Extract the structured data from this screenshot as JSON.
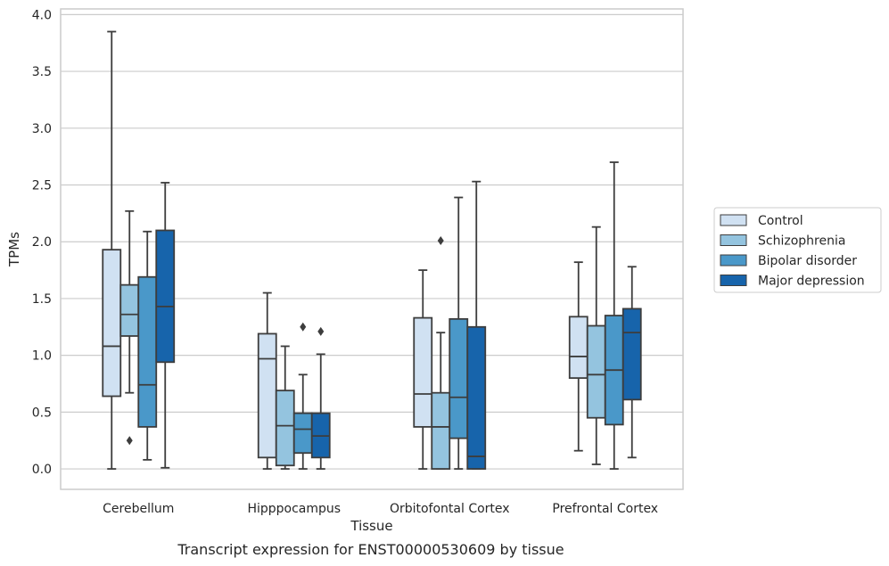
{
  "chart_data": {
    "type": "boxplot",
    "xlabel": "Tissue",
    "ylabel": "TPMs",
    "caption": "Transcript expression for ENST00000530609 by tissue",
    "ylim": [
      -0.18,
      4.05
    ],
    "yticks": [
      "0.0",
      "0.5",
      "1.0",
      "1.5",
      "2.0",
      "2.5",
      "3.0",
      "3.5",
      "4.0"
    ],
    "grid": "horizontal",
    "legend_position": "right",
    "categories": [
      "Cerebellum",
      "Hipppocampus",
      "Orbitofontal Cortex",
      "Prefrontal Cortex"
    ],
    "series": [
      {
        "name": "Control",
        "color": "#d0e1f2",
        "boxes": [
          {
            "whislo": 0.0,
            "q1": 0.64,
            "med": 1.08,
            "q3": 1.93,
            "whishi": 3.85,
            "fliers": []
          },
          {
            "whislo": 0.0,
            "q1": 0.1,
            "med": 0.97,
            "q3": 1.19,
            "whishi": 1.55,
            "fliers": []
          },
          {
            "whislo": 0.0,
            "q1": 0.37,
            "med": 0.66,
            "q3": 1.33,
            "whishi": 1.75,
            "fliers": []
          },
          {
            "whislo": 0.16,
            "q1": 0.8,
            "med": 0.99,
            "q3": 1.34,
            "whishi": 1.82,
            "fliers": []
          }
        ]
      },
      {
        "name": "Schizophrenia",
        "color": "#94c4df",
        "boxes": [
          {
            "whislo": 0.67,
            "q1": 1.17,
            "med": 1.36,
            "q3": 1.62,
            "whishi": 2.27,
            "fliers": [
              0.25
            ]
          },
          {
            "whislo": 0.0,
            "q1": 0.03,
            "med": 0.38,
            "q3": 0.69,
            "whishi": 1.08,
            "fliers": []
          },
          {
            "whislo": 0.0,
            "q1": 0.0,
            "med": 0.37,
            "q3": 0.67,
            "whishi": 1.2,
            "fliers": [
              2.01
            ]
          },
          {
            "whislo": 0.04,
            "q1": 0.45,
            "med": 0.83,
            "q3": 1.26,
            "whishi": 2.13,
            "fliers": []
          }
        ]
      },
      {
        "name": "Bipolar disorder",
        "color": "#4a98c9",
        "boxes": [
          {
            "whislo": 0.08,
            "q1": 0.37,
            "med": 0.74,
            "q3": 1.69,
            "whishi": 2.09,
            "fliers": []
          },
          {
            "whislo": 0.0,
            "q1": 0.14,
            "med": 0.35,
            "q3": 0.49,
            "whishi": 0.83,
            "fliers": [
              1.25
            ]
          },
          {
            "whislo": 0.0,
            "q1": 0.27,
            "med": 0.63,
            "q3": 1.32,
            "whishi": 2.39,
            "fliers": []
          },
          {
            "whislo": 0.0,
            "q1": 0.39,
            "med": 0.87,
            "q3": 1.35,
            "whishi": 2.7,
            "fliers": []
          }
        ]
      },
      {
        "name": "Major depression",
        "color": "#1764ab",
        "boxes": [
          {
            "whislo": 0.01,
            "q1": 0.94,
            "med": 1.43,
            "q3": 2.1,
            "whishi": 2.52,
            "fliers": []
          },
          {
            "whislo": 0.0,
            "q1": 0.1,
            "med": 0.29,
            "q3": 0.49,
            "whishi": 1.01,
            "fliers": [
              1.21
            ]
          },
          {
            "whislo": 0.0,
            "q1": 0.0,
            "med": 0.11,
            "q3": 1.25,
            "whishi": 2.53,
            "fliers": []
          },
          {
            "whislo": 0.1,
            "q1": 0.61,
            "med": 1.2,
            "q3": 1.41,
            "whishi": 1.78,
            "fliers": []
          }
        ]
      }
    ]
  }
}
